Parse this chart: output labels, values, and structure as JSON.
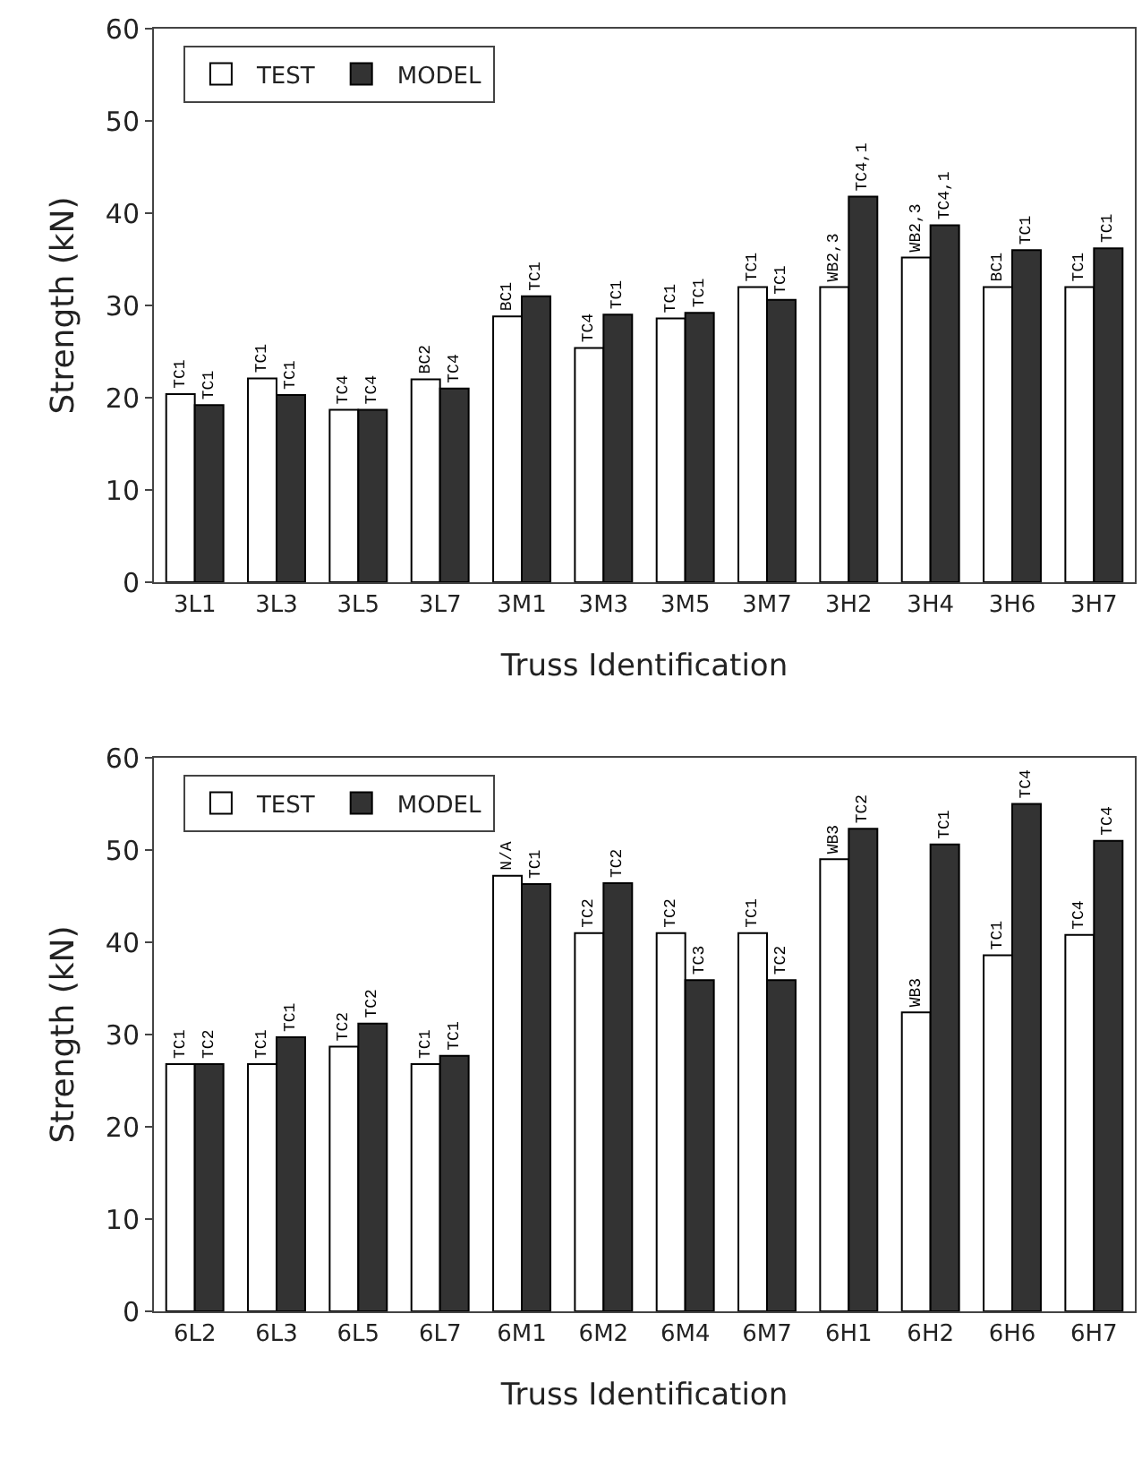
{
  "chart_data": [
    {
      "type": "bar",
      "xlabel": "Truss Identification",
      "ylabel": "Strength (kN)",
      "categories": [
        "3L1",
        "3L3",
        "3L5",
        "3L7",
        "3M1",
        "3M3",
        "3M5",
        "3M7",
        "3H2",
        "3H4",
        "3H6",
        "3H7"
      ],
      "ylim": [
        0,
        60
      ],
      "yticks": [
        0,
        10,
        20,
        30,
        40,
        50,
        60
      ],
      "legend": "top left",
      "series": [
        {
          "name": "TEST",
          "color": "#ffffff",
          "values": [
            20.4,
            22.1,
            18.7,
            22.0,
            28.8,
            25.4,
            28.6,
            32.0,
            32.0,
            35.2,
            32.0,
            32.0
          ],
          "value_labels": [
            "TC1",
            "TC1",
            "TC4",
            "BC2",
            "BC1",
            "TC4",
            "TC1",
            "TC1",
            "WB2,3",
            "WB2,3",
            "BC1",
            "TC1"
          ]
        },
        {
          "name": "MODEL",
          "color": "#333333",
          "values": [
            19.2,
            20.3,
            18.7,
            21.0,
            31.0,
            29.0,
            29.2,
            30.6,
            41.8,
            38.7,
            36.0,
            36.2
          ],
          "value_labels": [
            "TC1",
            "TC1",
            "TC4",
            "TC4",
            "TC1",
            "TC1",
            "TC1",
            "TC1",
            "TC4,1",
            "TC4,1",
            "TC1",
            "TC1"
          ]
        }
      ]
    },
    {
      "type": "bar",
      "xlabel": "Truss Identification",
      "ylabel": "Strength (kN)",
      "categories": [
        "6L2",
        "6L3",
        "6L5",
        "6L7",
        "6M1",
        "6M2",
        "6M4",
        "6M7",
        "6H1",
        "6H2",
        "6H6",
        "6H7"
      ],
      "ylim": [
        0,
        60
      ],
      "yticks": [
        0,
        10,
        20,
        30,
        40,
        50,
        60
      ],
      "legend": "top left",
      "series": [
        {
          "name": "TEST",
          "color": "#ffffff",
          "values": [
            26.8,
            26.8,
            28.7,
            26.8,
            47.2,
            41.0,
            41.0,
            41.0,
            49.0,
            32.4,
            38.6,
            40.8
          ],
          "value_labels": [
            "TC1",
            "TC1",
            "TC2",
            "TC1",
            "N/A",
            "TC2",
            "TC2",
            "TC1",
            "WB3",
            "WB3",
            "TC1",
            "TC4"
          ]
        },
        {
          "name": "MODEL",
          "color": "#333333",
          "values": [
            26.8,
            29.7,
            31.2,
            27.7,
            46.3,
            46.4,
            35.9,
            35.9,
            52.3,
            50.6,
            55.0,
            51.0
          ],
          "value_labels": [
            "TC2",
            "TC1",
            "TC2",
            "TC1",
            "TC1",
            "TC2",
            "TC3",
            "TC2",
            "TC2",
            "TC1",
            "TC4",
            "TC4"
          ]
        }
      ]
    }
  ]
}
